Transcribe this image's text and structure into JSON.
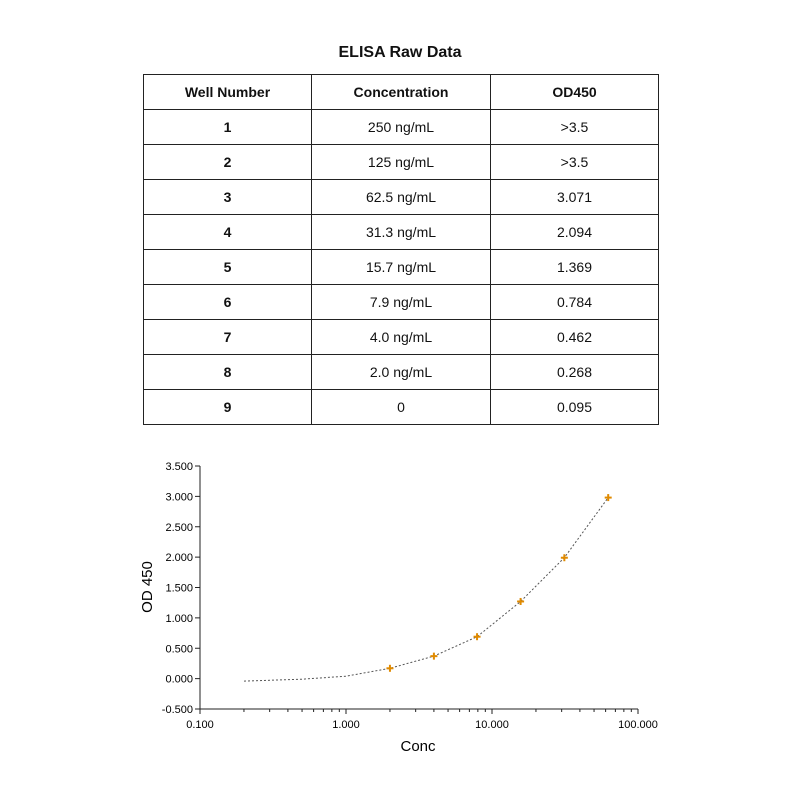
{
  "table": {
    "title": "ELISA Raw Data",
    "headers": [
      "Well Number",
      "Concentration",
      "OD450"
    ],
    "rows": [
      [
        "1",
        "250 ng/mL",
        ">3.5"
      ],
      [
        "2",
        "125 ng/mL",
        ">3.5"
      ],
      [
        "3",
        "62.5 ng/mL",
        "3.071"
      ],
      [
        "4",
        "31.3 ng/mL",
        "2.094"
      ],
      [
        "5",
        "15.7 ng/mL",
        "1.369"
      ],
      [
        "6",
        "7.9 ng/mL",
        "0.784"
      ],
      [
        "7",
        "4.0 ng/mL",
        "0.462"
      ],
      [
        "8",
        "2.0 ng/mL",
        "0.268"
      ],
      [
        "9",
        "0",
        "0.095"
      ]
    ]
  },
  "chart_data": {
    "type": "scatter",
    "title": "",
    "xlabel": "Conc",
    "ylabel": "OD 450",
    "x_scale": "log",
    "xlim": [
      0.1,
      100
    ],
    "ylim": [
      -0.5,
      3.5
    ],
    "x_ticks": [
      "0.100",
      "1.000",
      "10.000",
      "100.000"
    ],
    "y_ticks": [
      "-0.500",
      "0.000",
      "0.500",
      "1.000",
      "1.500",
      "2.000",
      "2.500",
      "3.000",
      "3.500"
    ],
    "grid": false,
    "legend": "none",
    "points": [
      {
        "x": 2.0,
        "y": 0.17
      },
      {
        "x": 4.0,
        "y": 0.37
      },
      {
        "x": 7.9,
        "y": 0.69
      },
      {
        "x": 15.7,
        "y": 1.27
      },
      {
        "x": 31.3,
        "y": 1.99
      },
      {
        "x": 62.5,
        "y": 2.98
      }
    ],
    "fit_curve": [
      {
        "x": 0.2,
        "y": -0.04
      },
      {
        "x": 0.5,
        "y": -0.01
      },
      {
        "x": 1.0,
        "y": 0.04
      },
      {
        "x": 2.0,
        "y": 0.17
      },
      {
        "x": 4.0,
        "y": 0.37
      },
      {
        "x": 7.9,
        "y": 0.69
      },
      {
        "x": 15.7,
        "y": 1.27
      },
      {
        "x": 31.3,
        "y": 1.99
      },
      {
        "x": 62.5,
        "y": 2.98
      }
    ],
    "marker_color": "#E08A00",
    "curve_color": "#555555"
  }
}
